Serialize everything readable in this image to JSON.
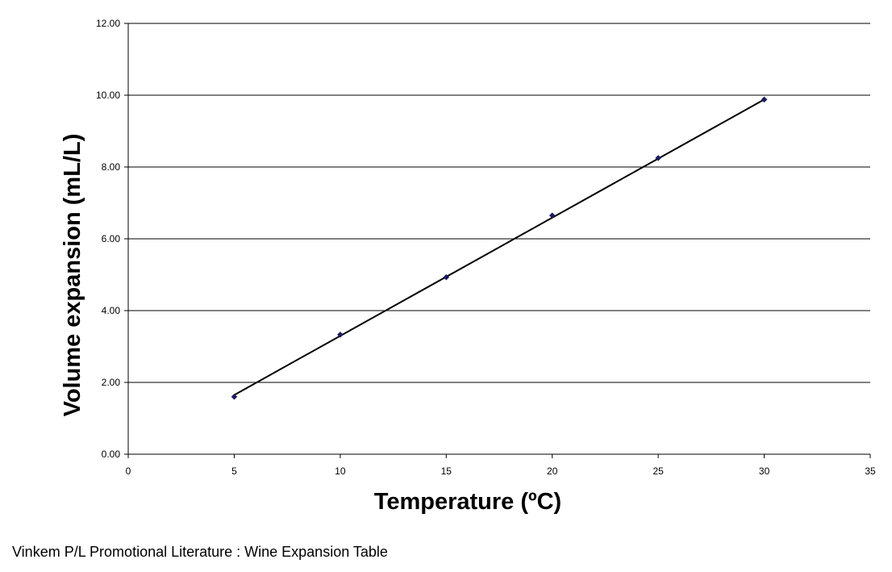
{
  "chart_data": {
    "type": "scatter",
    "title": "",
    "xlabel": "Temperature (ºC)",
    "ylabel": "Volume expansion (mL/L)",
    "xlim": [
      0,
      35
    ],
    "ylim": [
      0,
      12
    ],
    "x_ticks": [
      "0",
      "5",
      "10",
      "15",
      "20",
      "25",
      "30",
      "35"
    ],
    "y_ticks": [
      "0.00",
      "2.00",
      "4.00",
      "6.00",
      "8.00",
      "10.00",
      "12.00"
    ],
    "grid": "horizontal",
    "legend": "none",
    "series": [
      {
        "x": [
          5,
          10,
          15,
          20,
          25,
          30
        ],
        "y": [
          1.6,
          3.33,
          4.93,
          6.65,
          8.25,
          9.88
        ],
        "marker": "diamond",
        "color": "#1a1a5e"
      }
    ],
    "trendline": {
      "type": "linear",
      "x": [
        5,
        30
      ],
      "y": [
        1.65,
        9.88
      ],
      "color": "#000000"
    }
  },
  "footer": {
    "source_note": "Vinkem P/L Promotional Literature : Wine Expansion Table"
  }
}
